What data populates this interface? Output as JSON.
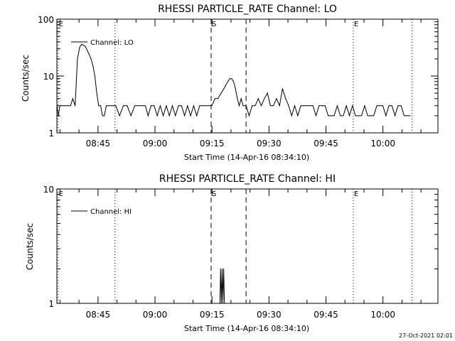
{
  "chart_data": [
    {
      "type": "line",
      "title": "RHESSI PARTICLE_RATE Channel: LO",
      "xlabel": "Start Time (14-Apr-16 08:34:10)",
      "ylabel": "Counts/sec",
      "yscale": "log",
      "ylim": [
        1,
        100
      ],
      "y_ticks": [
        "1",
        "10",
        "100"
      ],
      "xlim_minutes": [
        0,
        100.3
      ],
      "x_ticks": [
        {
          "label": "08:45",
          "minute": 10.83
        },
        {
          "label": "09:00",
          "minute": 25.83
        },
        {
          "label": "09:15",
          "minute": 40.83
        },
        {
          "label": "09:30",
          "minute": 55.83
        },
        {
          "label": "09:45",
          "minute": 70.83
        },
        {
          "label": "10:00",
          "minute": 85.83
        }
      ],
      "markers": [
        {
          "label": "E",
          "minute": 0.3,
          "style": "dotted"
        },
        {
          "label": "",
          "minute": 15.3,
          "style": "dotted"
        },
        {
          "label": "S",
          "minute": 40.6,
          "style": "dashed"
        },
        {
          "label": "",
          "minute": 49.8,
          "style": "dashed"
        },
        {
          "label": "E",
          "minute": 78.0,
          "style": "dotted"
        },
        {
          "label": "",
          "minute": 93.5,
          "style": "dotted"
        }
      ],
      "legend": "Channel: LO",
      "series": [
        {
          "name": "Channel: LO",
          "minutes": [
            0,
            0.4,
            0.8,
            1.2,
            1.6,
            2.0,
            2.5,
            3.0,
            3.6,
            4.2,
            4.8,
            5.4,
            6.0,
            6.5,
            7.0,
            7.5,
            8.0,
            8.5,
            9.0,
            9.5,
            10.0,
            10.5,
            11.0,
            11.5,
            12.0,
            12.5,
            13.0,
            13.5,
            14.0,
            14.5,
            15.0,
            15.5,
            16.5,
            17.5,
            18.5,
            19.5,
            20.5,
            21.5,
            22.5,
            23.3,
            24.0,
            24.8,
            25.6,
            26.4,
            27.2,
            28.0,
            28.8,
            29.6,
            30.4,
            31.2,
            32.0,
            32.8,
            33.6,
            34.4,
            35.2,
            36.0,
            36.8,
            37.6,
            38.4,
            39.2,
            40.0,
            40.8,
            41.6,
            42.4,
            43.2,
            44.0,
            44.5,
            45.0,
            45.5,
            46.0,
            46.5,
            47.0,
            47.5,
            48.0,
            48.5,
            49.0,
            49.8,
            50.6,
            51.4,
            52.2,
            53.0,
            53.8,
            54.6,
            55.4,
            56.2,
            57.0,
            57.8,
            58.6,
            59.4,
            60.2,
            61.0,
            61.8,
            62.6,
            63.4,
            64.2,
            65.0,
            65.8,
            66.6,
            67.4,
            68.2,
            69.0,
            69.8,
            70.6,
            71.4,
            72.2,
            73.0,
            73.8,
            74.6,
            75.4,
            76.2,
            77.0,
            77.8,
            78.6,
            79.4,
            80.2,
            81.0,
            81.8,
            82.6,
            83.4,
            84.2,
            85.0,
            85.8,
            86.6,
            87.4,
            88.2,
            89.0,
            89.8,
            90.6,
            91.4,
            92.2,
            93.0
          ],
          "values": [
            3,
            2,
            3,
            3,
            3,
            3,
            3,
            3,
            3,
            4,
            3,
            20,
            32,
            36,
            35,
            33,
            28,
            24,
            20,
            15,
            10,
            5,
            3,
            3,
            2,
            2,
            3,
            3,
            3,
            3,
            3,
            3,
            2,
            3,
            3,
            2,
            3,
            3,
            3,
            3,
            2,
            3,
            3,
            2,
            3,
            2,
            3,
            2,
            3,
            2,
            3,
            3,
            2,
            3,
            2,
            3,
            2,
            3,
            3,
            3,
            3,
            3,
            4,
            4,
            5,
            6,
            7,
            8,
            9,
            9,
            8,
            6,
            4,
            3,
            4,
            3,
            3,
            2,
            3,
            3,
            4,
            3,
            4,
            5,
            3,
            3,
            4,
            3,
            6,
            4,
            3,
            2,
            3,
            2,
            3,
            3,
            3,
            3,
            3,
            2,
            3,
            3,
            3,
            2,
            2,
            2,
            3,
            2,
            2,
            3,
            2,
            3,
            2,
            2,
            2,
            3,
            2,
            2,
            2,
            3,
            3,
            3,
            2,
            3,
            3,
            2,
            3,
            3,
            2,
            2,
            2
          ]
        }
      ]
    },
    {
      "type": "line",
      "title": "RHESSI PARTICLE_RATE Channel: HI",
      "xlabel": "Start Time (14-Apr-16 08:34:10)",
      "ylabel": "Counts/sec",
      "yscale": "log",
      "ylim": [
        1,
        10
      ],
      "y_ticks": [
        "1",
        "10"
      ],
      "xlim_minutes": [
        0,
        100.3
      ],
      "x_ticks": [
        {
          "label": "08:45",
          "minute": 10.83
        },
        {
          "label": "09:00",
          "minute": 25.83
        },
        {
          "label": "09:15",
          "minute": 40.83
        },
        {
          "label": "09:30",
          "minute": 55.83
        },
        {
          "label": "09:45",
          "minute": 70.83
        },
        {
          "label": "10:00",
          "minute": 85.83
        }
      ],
      "markers": [
        {
          "label": "E",
          "minute": 0.3,
          "style": "dotted"
        },
        {
          "label": "",
          "minute": 15.3,
          "style": "dotted"
        },
        {
          "label": "S",
          "minute": 40.6,
          "style": "dashed"
        },
        {
          "label": "",
          "minute": 49.8,
          "style": "dashed"
        },
        {
          "label": "E",
          "minute": 78.0,
          "style": "dotted"
        },
        {
          "label": "",
          "minute": 93.5,
          "style": "dotted"
        }
      ],
      "legend": "Channel: HI",
      "series": [
        {
          "name": "Channel: HI",
          "minutes": [
            42.9,
            43.1,
            43.3,
            43.5,
            43.7,
            43.9,
            44.1
          ],
          "values": [
            1,
            2,
            1,
            2,
            1,
            2,
            1
          ]
        }
      ]
    }
  ],
  "timestamp": "27-Oct-2021 02:01"
}
